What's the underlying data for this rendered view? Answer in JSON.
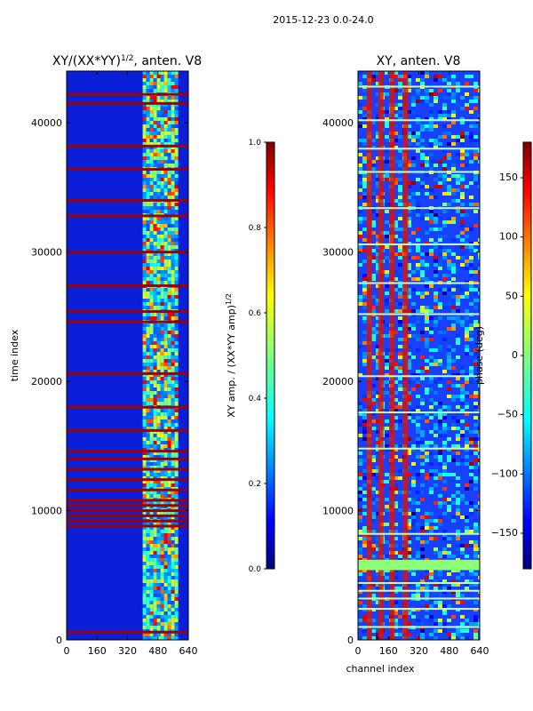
{
  "figure": {
    "suptitle": "2015-12-23 0.0-24.0"
  },
  "chart_data": [
    {
      "type": "heatmap",
      "title": "XY/(XX*YY)",
      "title_exponent": "1/2",
      "title_suffix": ", anten. V8",
      "xlabel": "",
      "ylabel": "time index",
      "xlim": [
        0,
        640
      ],
      "ylim": [
        0,
        44000
      ],
      "xticks": [
        0,
        160,
        320,
        480,
        640
      ],
      "yticks": [
        0,
        10000,
        20000,
        30000,
        40000
      ],
      "active_channel_band": [
        400,
        580
      ],
      "high_amplitude_rows": [
        600,
        8800,
        9200,
        9600,
        10000,
        10400,
        10800,
        11600,
        12400,
        13200,
        14000,
        14600,
        16200,
        18000,
        20600,
        24600,
        25400,
        27400,
        30000,
        32800,
        34000,
        36400,
        38200,
        41500,
        42200
      ],
      "colorbar": {
        "label": "XY amp. / (XX*YY amp)",
        "label_exponent": "1/2",
        "range": [
          0.0,
          1.0
        ],
        "ticks": [
          0.0,
          0.2,
          0.4,
          0.6,
          0.8,
          1.0
        ],
        "tick_labels": [
          "0.0",
          "0.2",
          "0.4",
          "0.6",
          "0.8",
          "1.0"
        ],
        "colormap": "jet"
      }
    },
    {
      "type": "heatmap",
      "title": "XY, anten. V8",
      "xlabel": "channel index",
      "ylabel": "",
      "xlim": [
        0,
        640
      ],
      "ylim": [
        0,
        44000
      ],
      "xticks": [
        0,
        160,
        320,
        480,
        640
      ],
      "yticks": [
        0,
        10000,
        20000,
        30000,
        40000
      ],
      "flagged_band": {
        "y_start": 5400,
        "y_end": 6200
      },
      "flagged_rows": [
        1000,
        2400,
        3200,
        3800,
        4400,
        8200,
        14800,
        17600,
        20400,
        25200,
        27600,
        30600,
        33400,
        36200,
        38000,
        40200,
        42800
      ],
      "red_channel_stripes": [
        60,
        120,
        180,
        250
      ],
      "colorbar": {
        "label": "phase (deg)",
        "range": [
          -180,
          180
        ],
        "ticks": [
          -150,
          -100,
          -50,
          0,
          50,
          100,
          150
        ],
        "tick_labels": [
          "−150",
          "−100",
          "−50",
          "0",
          "50",
          "100",
          "150"
        ],
        "colormap": "jet"
      }
    }
  ],
  "colors": {
    "jet": [
      "#00007f",
      "#0000ff",
      "#007fff",
      "#00ffff",
      "#7fff7f",
      "#ffff00",
      "#ff7f00",
      "#ff0000",
      "#7f0000"
    ]
  }
}
